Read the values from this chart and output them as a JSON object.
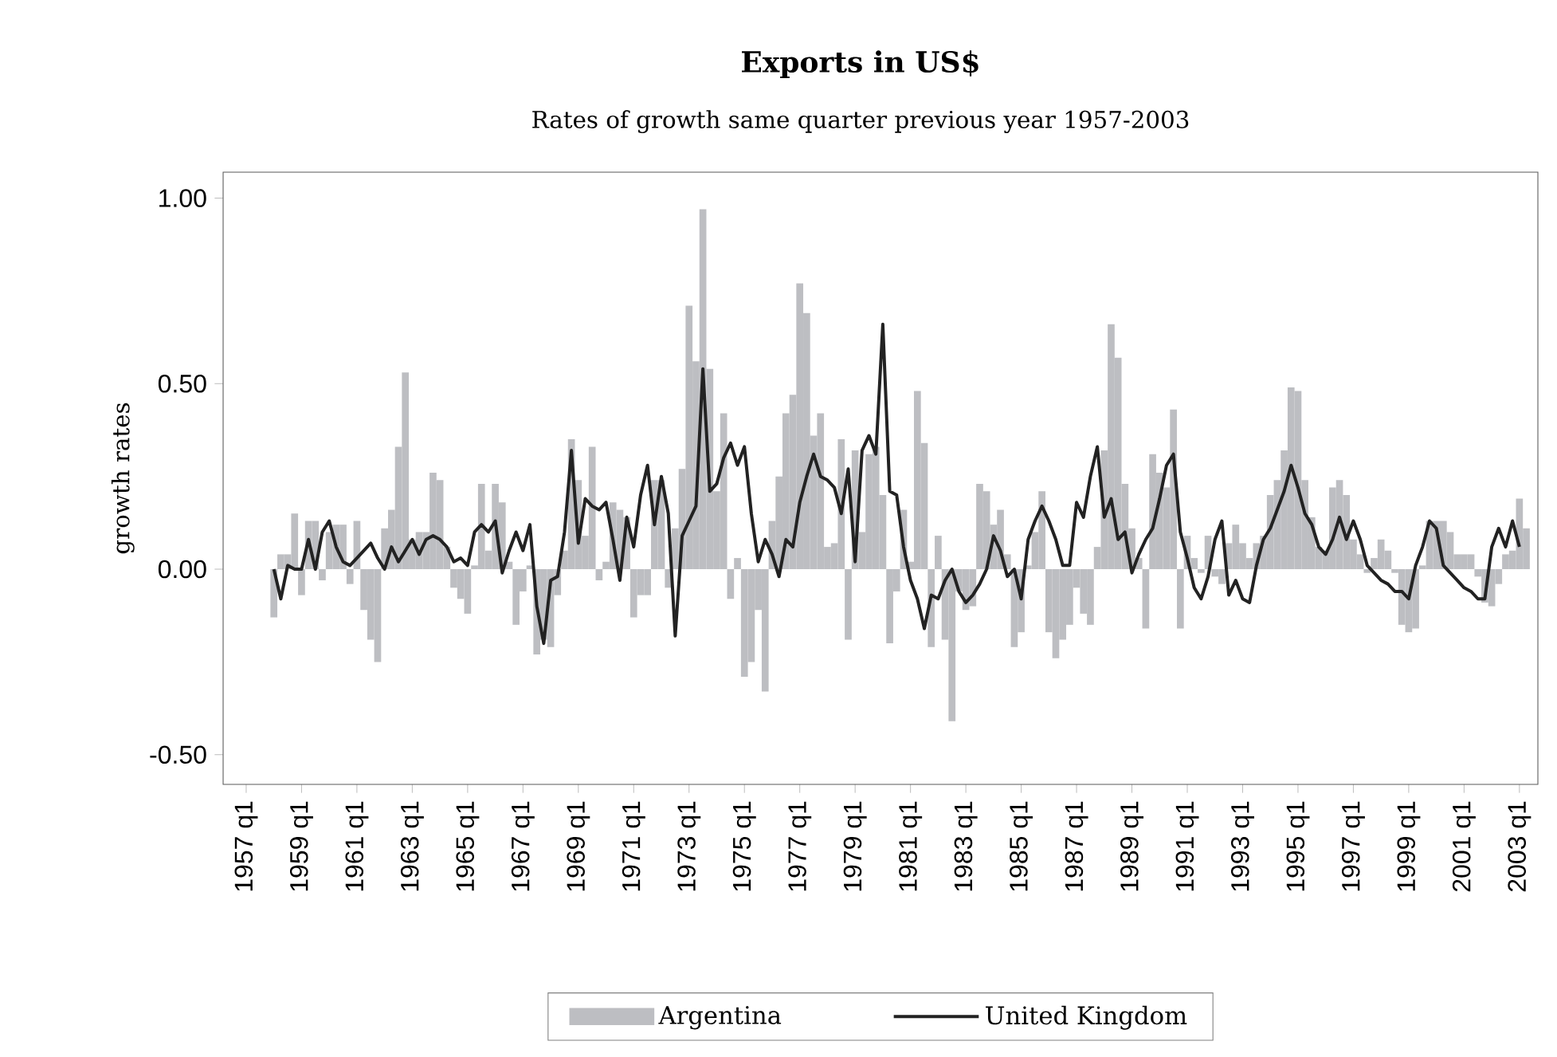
{
  "chart_data": {
    "type": "bar",
    "title": "Exports in US$",
    "subtitle": "Rates of growth same quarter previous year 1957-2003",
    "ylabel": "growth rates",
    "x": [
      "1958-01",
      "1958-04",
      "1958-07",
      "1958-10",
      "1959-01",
      "1959-04",
      "1959-07",
      "1959-10",
      "1960-01",
      "1960-04",
      "1960-07",
      "1960-10",
      "1961-01",
      "1961-04",
      "1961-07",
      "1961-10",
      "1962-01",
      "1962-04",
      "1962-07",
      "1962-10",
      "1963-01",
      "1963-04",
      "1963-07",
      "1963-10",
      "1964-01",
      "1964-04",
      "1964-07",
      "1964-10",
      "1965-01",
      "1965-04",
      "1965-07",
      "1965-10",
      "1966-01",
      "1966-04",
      "1966-07",
      "1966-10",
      "1967-01",
      "1967-04",
      "1967-07",
      "1967-10",
      "1968-01",
      "1968-04",
      "1968-07",
      "1968-10",
      "1969-01",
      "1969-04",
      "1969-07",
      "1969-10",
      "1970-01",
      "1970-04",
      "1970-07",
      "1970-10",
      "1971-01",
      "1971-04",
      "1971-07",
      "1971-10",
      "1972-01",
      "1972-04",
      "1972-07",
      "1972-10",
      "1973-01",
      "1973-04",
      "1973-07",
      "1973-10",
      "1974-01",
      "1974-04",
      "1974-07",
      "1974-10",
      "1975-01",
      "1975-04",
      "1975-07",
      "1975-10",
      "1976-01",
      "1976-04",
      "1976-07",
      "1976-10",
      "1977-01",
      "1977-04",
      "1977-07",
      "1977-10",
      "1978-01",
      "1978-04",
      "1978-07",
      "1978-10",
      "1979-01",
      "1979-04",
      "1979-07",
      "1979-10",
      "1980-01",
      "1980-04",
      "1980-07",
      "1980-10",
      "1981-01",
      "1981-04",
      "1981-07",
      "1981-10",
      "1982-01",
      "1982-04",
      "1982-07",
      "1982-10",
      "1983-01",
      "1983-04",
      "1983-07",
      "1983-10",
      "1984-01",
      "1984-04",
      "1984-07",
      "1984-10",
      "1985-01",
      "1985-04",
      "1985-07",
      "1985-10",
      "1986-01",
      "1986-04",
      "1986-07",
      "1986-10",
      "1987-01",
      "1987-04",
      "1987-07",
      "1987-10",
      "1988-01",
      "1988-04",
      "1988-07",
      "1988-10",
      "1989-01",
      "1989-04",
      "1989-07",
      "1989-10",
      "1990-01",
      "1990-04",
      "1990-07",
      "1990-10",
      "1991-01",
      "1991-04",
      "1991-07",
      "1991-10",
      "1992-01",
      "1992-04",
      "1992-07",
      "1992-10",
      "1993-01",
      "1993-04",
      "1993-07",
      "1993-10",
      "1994-01",
      "1994-04",
      "1994-07",
      "1994-10",
      "1995-01",
      "1995-04",
      "1995-07",
      "1995-10",
      "1996-01",
      "1996-04",
      "1996-07",
      "1996-10",
      "1997-01",
      "1997-04",
      "1997-07",
      "1997-10",
      "1998-01",
      "1998-04",
      "1998-07",
      "1998-10",
      "1999-01",
      "1999-04",
      "1999-07",
      "1999-10",
      "2000-01",
      "2000-04",
      "2000-07",
      "2000-10",
      "2001-01",
      "2001-04",
      "2001-07",
      "2001-10",
      "2002-01",
      "2002-04",
      "2002-07",
      "2002-10",
      "2003-01",
      "2003-04"
    ],
    "series": [
      {
        "name": "Argentina",
        "color": "#bdbec2",
        "values": [
          -0.13,
          0.04,
          0.04,
          0.15,
          -0.07,
          0.13,
          0.13,
          -0.03,
          0.1,
          0.12,
          0.12,
          -0.04,
          0.13,
          -0.11,
          -0.19,
          -0.25,
          0.11,
          0.16,
          0.33,
          0.53,
          0.08,
          0.1,
          0.1,
          0.26,
          0.24,
          0.06,
          -0.05,
          -0.08,
          -0.12,
          0.01,
          0.23,
          0.05,
          0.23,
          0.18,
          0.02,
          -0.15,
          -0.06,
          0.01,
          -0.23,
          -0.19,
          -0.21,
          -0.07,
          0.05,
          0.35,
          0.24,
          0.09,
          0.33,
          -0.03,
          0.02,
          0.18,
          0.16,
          0.14,
          -0.13,
          -0.07,
          -0.07,
          0.24,
          0.24,
          -0.05,
          0.11,
          0.27,
          0.71,
          0.56,
          0.97,
          0.54,
          0.21,
          0.42,
          -0.08,
          0.03,
          -0.29,
          -0.25,
          -0.11,
          -0.33,
          0.13,
          0.25,
          0.42,
          0.47,
          0.77,
          0.69,
          0.36,
          0.42,
          0.06,
          0.07,
          0.35,
          -0.19,
          0.32,
          0.1,
          0.31,
          0.33,
          0.2,
          -0.2,
          -0.06,
          0.16,
          0.02,
          0.48,
          0.34,
          -0.21,
          0.09,
          -0.19,
          -0.41,
          -0.06,
          -0.11,
          -0.1,
          0.23,
          0.21,
          0.12,
          0.16,
          0.04,
          -0.21,
          -0.17,
          0.01,
          0.1,
          0.21,
          -0.17,
          -0.24,
          -0.19,
          -0.15,
          -0.05,
          -0.12,
          -0.15,
          0.06,
          0.32,
          0.66,
          0.57,
          0.23,
          0.11,
          0.03,
          -0.16,
          0.31,
          0.26,
          0.22,
          0.43,
          -0.16,
          0.09,
          0.03,
          -0.01,
          0.09,
          -0.02,
          -0.04,
          0.07,
          0.12,
          0.07,
          0.03,
          0.07,
          0.09,
          0.2,
          0.24,
          0.32,
          0.49,
          0.48,
          0.24,
          0.14,
          0.06,
          0.05,
          0.22,
          0.24,
          0.2,
          0.08,
          0.04,
          -0.01,
          0.03,
          0.08,
          0.05,
          -0.01,
          -0.15,
          -0.17,
          -0.16,
          0.01,
          0.13,
          0.13,
          0.13,
          0.1,
          0.04,
          0.04,
          0.04,
          -0.02,
          -0.09,
          -0.1,
          -0.04,
          0.04,
          0.05,
          0.19,
          0.11
        ]
      },
      {
        "name": "United Kingdom",
        "type": "line",
        "color": "#222222",
        "values": [
          0.0,
          -0.08,
          0.01,
          0.0,
          0.0,
          0.08,
          0.0,
          0.1,
          0.13,
          0.06,
          0.02,
          0.01,
          0.03,
          0.05,
          0.07,
          0.03,
          0.0,
          0.06,
          0.02,
          0.05,
          0.08,
          0.04,
          0.08,
          0.09,
          0.08,
          0.06,
          0.02,
          0.03,
          0.01,
          0.1,
          0.12,
          0.1,
          0.13,
          -0.01,
          0.05,
          0.1,
          0.05,
          0.12,
          -0.1,
          -0.2,
          -0.03,
          -0.02,
          0.1,
          0.32,
          0.07,
          0.19,
          0.17,
          0.16,
          0.18,
          0.08,
          -0.03,
          0.14,
          0.06,
          0.2,
          0.28,
          0.12,
          0.25,
          0.15,
          -0.18,
          0.09,
          0.13,
          0.17,
          0.54,
          0.21,
          0.23,
          0.3,
          0.34,
          0.28,
          0.33,
          0.15,
          0.02,
          0.08,
          0.04,
          -0.02,
          0.08,
          0.06,
          0.18,
          0.25,
          0.31,
          0.25,
          0.24,
          0.22,
          0.15,
          0.27,
          0.02,
          0.32,
          0.36,
          0.31,
          0.66,
          0.21,
          0.2,
          0.06,
          -0.03,
          -0.08,
          -0.16,
          -0.07,
          -0.08,
          -0.03,
          0.0,
          -0.06,
          -0.09,
          -0.07,
          -0.04,
          0.0,
          0.09,
          0.05,
          -0.02,
          0.0,
          -0.08,
          0.08,
          0.13,
          0.17,
          0.13,
          0.08,
          0.01,
          0.01,
          0.18,
          0.14,
          0.25,
          0.33,
          0.14,
          0.19,
          0.08,
          0.1,
          -0.01,
          0.04,
          0.08,
          0.11,
          0.19,
          0.28,
          0.31,
          0.1,
          0.03,
          -0.05,
          -0.08,
          -0.02,
          0.08,
          0.13,
          -0.07,
          -0.03,
          -0.08,
          -0.09,
          0.01,
          0.08,
          0.11,
          0.16,
          0.21,
          0.28,
          0.22,
          0.15,
          0.12,
          0.06,
          0.04,
          0.08,
          0.14,
          0.08,
          0.13,
          0.08,
          0.01,
          -0.01,
          -0.03,
          -0.04,
          -0.06,
          -0.06,
          -0.08,
          0.01,
          0.06,
          0.13,
          0.11,
          0.01,
          -0.01,
          -0.03,
          -0.05,
          -0.06,
          -0.08,
          -0.08,
          0.06,
          0.11,
          0.06,
          0.13,
          0.06,
          null
        ]
      }
    ],
    "xlim": [
      "1956-03",
      "2003-09"
    ],
    "ylim": [
      -0.58,
      1.07
    ],
    "xticks": [
      {
        "value": "1957-01",
        "label": "1957 q1"
      },
      {
        "value": "1959-01",
        "label": "1959 q1"
      },
      {
        "value": "1961-01",
        "label": "1961 q1"
      },
      {
        "value": "1963-01",
        "label": "1963 q1"
      },
      {
        "value": "1965-01",
        "label": "1965 q1"
      },
      {
        "value": "1967-01",
        "label": "1967 q1"
      },
      {
        "value": "1969-01",
        "label": "1969 q1"
      },
      {
        "value": "1971-01",
        "label": "1971 q1"
      },
      {
        "value": "1973-01",
        "label": "1973 q1"
      },
      {
        "value": "1975-01",
        "label": "1975 q1"
      },
      {
        "value": "1977-01",
        "label": "1977 q1"
      },
      {
        "value": "1979-01",
        "label": "1979 q1"
      },
      {
        "value": "1981-01",
        "label": "1981 q1"
      },
      {
        "value": "1983-01",
        "label": "1983 q1"
      },
      {
        "value": "1985-01",
        "label": "1985 q1"
      },
      {
        "value": "1987-01",
        "label": "1987 q1"
      },
      {
        "value": "1989-01",
        "label": "1989 q1"
      },
      {
        "value": "1991-01",
        "label": "1991 q1"
      },
      {
        "value": "1993-01",
        "label": "1993 q1"
      },
      {
        "value": "1995-01",
        "label": "1995 q1"
      },
      {
        "value": "1997-01",
        "label": "1997 q1"
      },
      {
        "value": "1999-01",
        "label": "1999 q1"
      },
      {
        "value": "2001-01",
        "label": "2001 q1"
      },
      {
        "value": "2003-01",
        "label": "2003 q1"
      }
    ],
    "yticks": [
      {
        "value": -0.5,
        "label": "-0.50"
      },
      {
        "value": 0,
        "label": "0.00"
      },
      {
        "value": 0.5,
        "label": "0.50"
      },
      {
        "value": 1,
        "label": "1.00"
      }
    ],
    "legend": "bottom"
  }
}
